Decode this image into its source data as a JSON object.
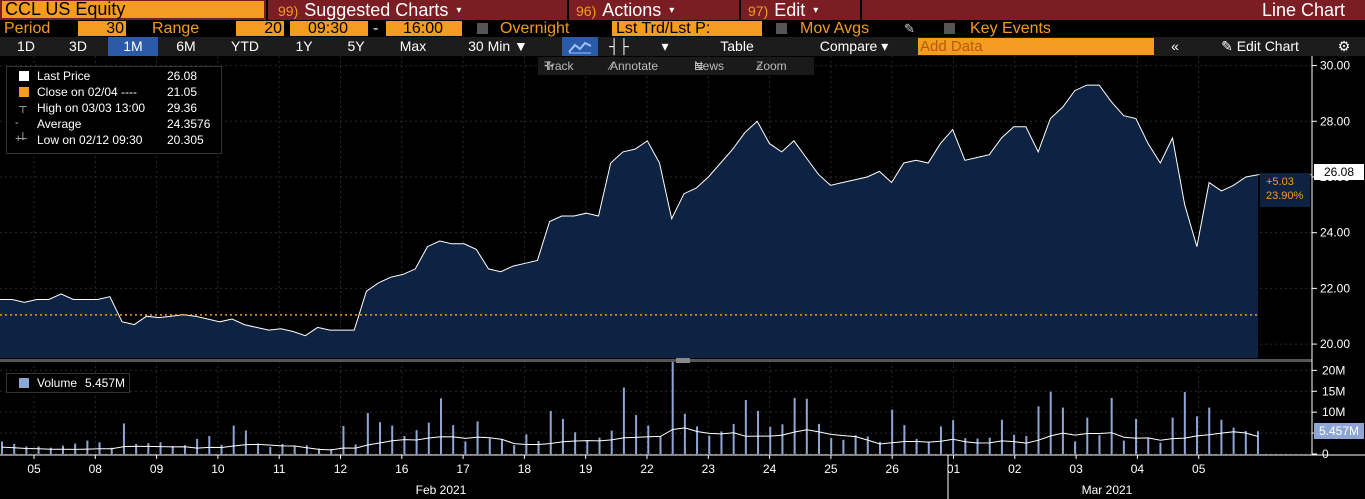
{
  "header": {
    "ticker": "CCL US Equity",
    "menus": [
      {
        "num": "99)",
        "label": "Suggested Charts"
      },
      {
        "num": "96)",
        "label": "Actions"
      },
      {
        "num": "97)",
        "label": "Edit"
      }
    ],
    "chart_type": "Line Chart"
  },
  "settings": {
    "period_label": "Period",
    "period_value": "30",
    "range_label": "Range",
    "range_value": "20",
    "time_from": "09:30",
    "time_dash": "-",
    "time_to": "16:00",
    "overnight": "Overnight",
    "lst_trd": "Lst Trd/Lst P:",
    "mov_avgs": "Mov Avgs",
    "key_events": "Key Events"
  },
  "toolbar": {
    "periods": [
      "1D",
      "3D",
      "1M",
      "6M",
      "YTD",
      "1Y",
      "5Y",
      "Max"
    ],
    "selected_period": "1M",
    "interval": "30 Min",
    "table_label": "Table",
    "compare_label": "Compare",
    "add_data_placeholder": "Add Data",
    "edit_chart_label": "Edit Chart"
  },
  "tools": {
    "track": "Track",
    "annotate": "Annotate",
    "news": "News",
    "zoom": "Zoom"
  },
  "legend": {
    "last_price_label": "Last Price",
    "last_price_value": "26.08",
    "close_label": "Close on 02/04 ----",
    "close_value": "21.05",
    "high_label": "High on 03/03 13:00",
    "high_value": "29.36",
    "average_label": "Average",
    "average_value": "24.3576",
    "low_label": "Low on 02/12 09:30",
    "low_value": "20.305"
  },
  "volume_legend": {
    "label": "Volume",
    "value": "5.457M"
  },
  "price_axis": {
    "ticks": [
      "30.00",
      "28.00",
      "26.00",
      "24.00",
      "22.00",
      "20.00"
    ],
    "last_tag": "26.08",
    "change": "+5.03",
    "change_pct": "23.90%"
  },
  "volume_axis": {
    "ticks": [
      "20M",
      "15M",
      "10M",
      "5M",
      "0"
    ],
    "last_tag": "5.457M"
  },
  "x_axis": {
    "days": [
      "05",
      "08",
      "09",
      "10",
      "11",
      "12",
      "16",
      "17",
      "18",
      "19",
      "22",
      "23",
      "24",
      "25",
      "26",
      "01",
      "02",
      "03",
      "04",
      "05"
    ],
    "months": [
      "Feb 2021",
      "Mar 2021"
    ]
  },
  "colors": {
    "orange": "#f39c1f",
    "header_red": "#7a1e24",
    "area_fill": "#0e2342",
    "selected": "#2a5aa8",
    "volume_bar": "#8ea6d6"
  },
  "chart_data": [
    {
      "type": "area",
      "series": [
        {
          "name": "Last Price",
          "values": [
            21.6,
            21.6,
            21.5,
            21.6,
            21.6,
            21.8,
            21.6,
            21.6,
            21.6,
            21.7,
            20.8,
            20.7,
            21.0,
            20.95,
            21.0,
            21.05,
            21.0,
            20.9,
            20.8,
            20.9,
            20.7,
            20.6,
            20.5,
            20.55,
            20.45,
            20.3,
            20.6,
            20.5,
            20.5,
            20.5,
            21.9,
            22.2,
            22.4,
            22.5,
            22.7,
            23.5,
            23.7,
            23.6,
            23.6,
            23.4,
            22.7,
            22.6,
            22.8,
            22.9,
            23.0,
            24.4,
            24.6,
            24.6,
            24.7,
            24.6,
            26.5,
            26.9,
            27.0,
            27.3,
            26.5,
            24.5,
            25.4,
            25.6,
            26.0,
            26.5,
            27.0,
            27.6,
            28.0,
            27.2,
            26.9,
            27.3,
            26.7,
            26.1,
            25.7,
            25.8,
            25.9,
            26.0,
            26.2,
            25.8,
            26.5,
            26.6,
            26.5,
            27.2,
            27.7,
            26.6,
            26.7,
            26.8,
            27.4,
            27.8,
            27.8,
            26.9,
            28.1,
            28.5,
            29.1,
            29.3,
            29.3,
            28.7,
            28.2,
            28.1,
            27.2,
            26.5,
            27.4,
            25.0,
            23.5,
            25.8,
            25.5,
            25.7,
            26.0,
            26.08
          ]
        }
      ],
      "ylim": [
        19.5,
        30.2
      ],
      "reference_line": {
        "label": "Close on 02/04",
        "value": 21.05
      }
    },
    {
      "type": "bar",
      "series": [
        {
          "name": "Volume",
          "values": [
            3,
            2.4,
            1.8,
            1.8,
            1.5,
            2.0,
            2.5,
            3.2,
            2.8,
            1.5,
            7.3,
            2.4,
            2.6,
            2.8,
            1.9,
            2.1,
            3.6,
            4.3,
            2.2,
            6.8,
            5.6,
            2.5,
            1.7,
            2.4,
            1.9,
            2.1,
            1.3,
            1.2,
            6.7,
            2.3,
            9.8,
            7.6,
            6.8,
            4.3,
            5.7,
            7.5,
            13.3,
            6.9,
            3.0,
            7.8,
            3.7,
            3.5,
            2.1,
            4.7,
            3.1,
            10.3,
            8.4,
            5.2,
            3.3,
            3.9,
            5.6,
            15.9,
            9.3,
            6.8,
            4.3,
            22.1,
            9.6,
            6.6,
            4.4,
            5.4,
            7.2,
            12.9,
            10.3,
            6.5,
            7.1,
            13.4,
            13.2,
            7.2,
            3.8,
            3.4,
            4.5,
            4.2,
            2.9,
            10.6,
            6.9,
            3.6,
            2.8,
            6.6,
            8.1,
            3.8,
            3.7,
            3.9,
            8.2,
            4.6,
            4.3,
            11.4,
            14.9,
            11.1,
            3.0,
            8.7,
            4.5,
            13.4,
            3.2,
            8.4,
            3.7,
            2.7,
            8.7,
            14.8,
            9.0,
            11.1,
            8.2,
            6.3,
            5.5,
            5.457
          ]
        }
      ],
      "ylim": [
        0,
        22
      ],
      "overlay": "moving average"
    }
  ]
}
